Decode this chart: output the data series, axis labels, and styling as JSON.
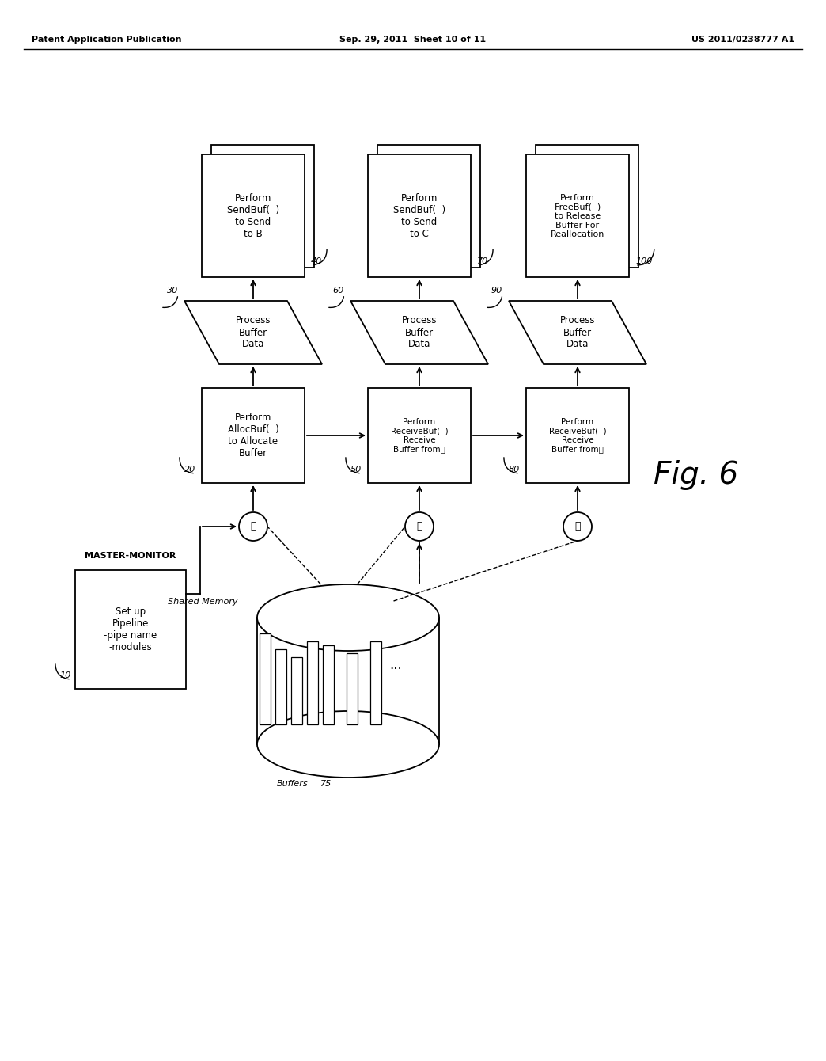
{
  "background_color": "#ffffff",
  "header_left": "Patent Application Publication",
  "header_center": "Sep. 29, 2011  Sheet 10 of 11",
  "header_right": "US 2011/0238777 A1",
  "figure_label": "Fig. 6"
}
